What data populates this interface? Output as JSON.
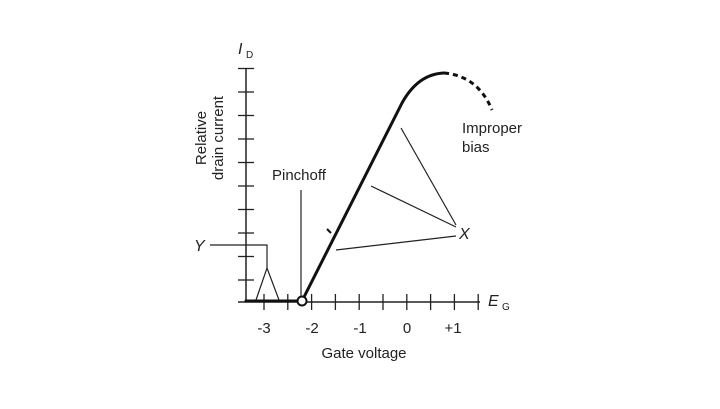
{
  "diagram": {
    "y_axis": {
      "symbol": "I",
      "subscript": "D",
      "label_line1": "Relative",
      "label_line2": "drain current"
    },
    "x_axis": {
      "symbol": "E",
      "subscript": "G",
      "label": "Gate voltage",
      "tick_labels": [
        "-3",
        "-2",
        "-1",
        "0",
        "+1"
      ]
    },
    "annotations": {
      "pinchoff": "Pinchoff",
      "improper_line1": "Improper",
      "improper_line2": "bias",
      "x_marker": "X",
      "y_marker": "Y"
    }
  }
}
